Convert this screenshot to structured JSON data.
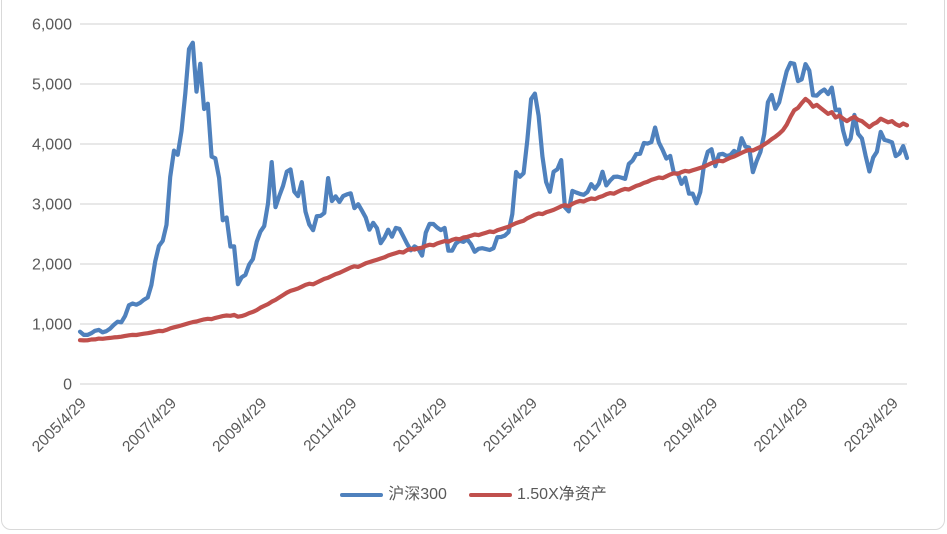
{
  "chart_data": {
    "type": "line",
    "title": "",
    "xlabel": "",
    "ylabel": "",
    "ylim": [
      0,
      6000
    ],
    "grid": true,
    "legend_position": "bottom",
    "y_ticks": [
      0,
      1000,
      2000,
      3000,
      4000,
      5000,
      6000
    ],
    "y_tick_labels": [
      "0",
      "1,000",
      "2,000",
      "3,000",
      "4,000",
      "5,000",
      "6,000"
    ],
    "x_tick_labels": [
      "2005/4/29",
      "2007/4/29",
      "2009/4/29",
      "2011/4/29",
      "2013/4/29",
      "2015/4/29",
      "2017/4/29",
      "2019/4/29",
      "2021/4/29",
      "2023/4/29"
    ],
    "x_tick_every_n_points": 24,
    "x_start_month": "2005/4",
    "x_end_month": "2023/8",
    "x_frequency": "monthly",
    "series": [
      {
        "name": "沪深300",
        "color": "#4F81BD",
        "values": [
          872,
          818,
          818,
          847,
          886,
          901,
          861,
          880,
          924,
          985,
          1038,
          1029,
          1135,
          1312,
          1342,
          1322,
          1352,
          1403,
          1441,
          1650,
          2042,
          2300,
          2385,
          2653,
          3450,
          3890,
          3820,
          4213,
          4841,
          5581,
          5688,
          4872,
          5338,
          4583,
          4672,
          3790,
          3761,
          3433,
          2729,
          2775,
          2291,
          2294,
          1664,
          1776,
          1818,
          1991,
          2081,
          2368,
          2538,
          2632,
          3008,
          3698,
          2947,
          3130,
          3300,
          3539,
          3576,
          3205,
          3131,
          3365,
          2871,
          2656,
          2563,
          2797,
          2801,
          2850,
          3431,
          3049,
          3128,
          3034,
          3131,
          3160,
          3179,
          2932,
          2996,
          2890,
          2775,
          2571,
          2686,
          2597,
          2346,
          2441,
          2571,
          2455,
          2602,
          2585,
          2461,
          2338,
          2229,
          2293,
          2254,
          2140,
          2523,
          2669,
          2666,
          2609,
          2565,
          2601,
          2221,
          2222,
          2342,
          2389,
          2369,
          2411,
          2331,
          2204,
          2254,
          2264,
          2249,
          2233,
          2264,
          2447,
          2450,
          2473,
          2532,
          2830,
          3534,
          3453,
          3513,
          4061,
          4748,
          4840,
          4473,
          3796,
          3366,
          3203,
          3539,
          3580,
          3731,
          2946,
          2877,
          3218,
          3191,
          3168,
          3154,
          3202,
          3331,
          3254,
          3338,
          3538,
          3310,
          3388,
          3452,
          3456,
          3440,
          3418,
          3667,
          3723,
          3831,
          3837,
          4016,
          4006,
          4031,
          4275,
          4023,
          3899,
          3757,
          3802,
          3511,
          3512,
          3335,
          3439,
          3174,
          3173,
          3011,
          3202,
          3653,
          3872,
          3913,
          3630,
          3825,
          3836,
          3800,
          3815,
          3887,
          3828,
          4097,
          3955,
          3940,
          3530,
          3714,
          3867,
          4163,
          4696,
          4816,
          4587,
          4695,
          4961,
          5211,
          5352,
          5337,
          5048,
          5078,
          5331,
          5224,
          4811,
          4806,
          4866,
          4909,
          4832,
          4940,
          4564,
          4573,
          4223,
          3995,
          4092,
          4485,
          4170,
          4093,
          3805,
          3541,
          3775,
          3872,
          4201,
          4069,
          4051,
          4029,
          3799,
          3842,
          3965,
          3766
        ]
      },
      {
        "name": "1.50X净资产",
        "color": "#C0504D",
        "values": [
          730,
          726,
          728,
          741,
          744,
          756,
          753,
          762,
          768,
          776,
          782,
          789,
          801,
          812,
          818,
          816,
          828,
          838,
          846,
          858,
          872,
          885,
          881,
          901,
          926,
          945,
          960,
          976,
          996,
          1015,
          1031,
          1041,
          1060,
          1076,
          1086,
          1081,
          1101,
          1116,
          1131,
          1141,
          1136,
          1151,
          1121,
          1131,
          1151,
          1181,
          1201,
          1231,
          1271,
          1301,
          1331,
          1371,
          1401,
          1441,
          1481,
          1521,
          1551,
          1571,
          1591,
          1621,
          1651,
          1671,
          1661,
          1691,
          1721,
          1751,
          1771,
          1801,
          1831,
          1851,
          1881,
          1911,
          1941,
          1961,
          1951,
          1981,
          2011,
          2031,
          2051,
          2071,
          2091,
          2111,
          2141,
          2161,
          2181,
          2201,
          2191,
          2231,
          2251,
          2241,
          2261,
          2271,
          2301,
          2321,
          2311,
          2341,
          2361,
          2381,
          2371,
          2401,
          2421,
          2411,
          2441,
          2451,
          2471,
          2491,
          2481,
          2501,
          2521,
          2541,
          2531,
          2561,
          2581,
          2601,
          2621,
          2651,
          2681,
          2701,
          2721,
          2761,
          2791,
          2821,
          2841,
          2831,
          2861,
          2881,
          2901,
          2931,
          2961,
          2981,
          2961,
          3001,
          3031,
          3051,
          3041,
          3071,
          3091,
          3081,
          3111,
          3131,
          3161,
          3181,
          3171,
          3201,
          3231,
          3251,
          3241,
          3271,
          3301,
          3321,
          3351,
          3371,
          3401,
          3421,
          3441,
          3431,
          3461,
          3491,
          3511,
          3501,
          3531,
          3551,
          3541,
          3561,
          3581,
          3601,
          3621,
          3651,
          3681,
          3701,
          3721,
          3711,
          3741,
          3771,
          3791,
          3821,
          3851,
          3881,
          3901,
          3891,
          3921,
          3951,
          3991,
          4031,
          4081,
          4121,
          4171,
          4231,
          4321,
          4451,
          4561,
          4601,
          4681,
          4751,
          4701,
          4621,
          4651,
          4601,
          4551,
          4501,
          4531,
          4441,
          4471,
          4421,
          4381,
          4421,
          4451,
          4401,
          4381,
          4331,
          4281,
          4331,
          4361,
          4421,
          4391,
          4361,
          4381,
          4331,
          4301,
          4341,
          4311
        ]
      }
    ]
  },
  "colors": {
    "grid": "#D9D9D9",
    "axis_text": "#595959",
    "frame_border": "#D9D9D9",
    "background": "#FFFFFF"
  }
}
